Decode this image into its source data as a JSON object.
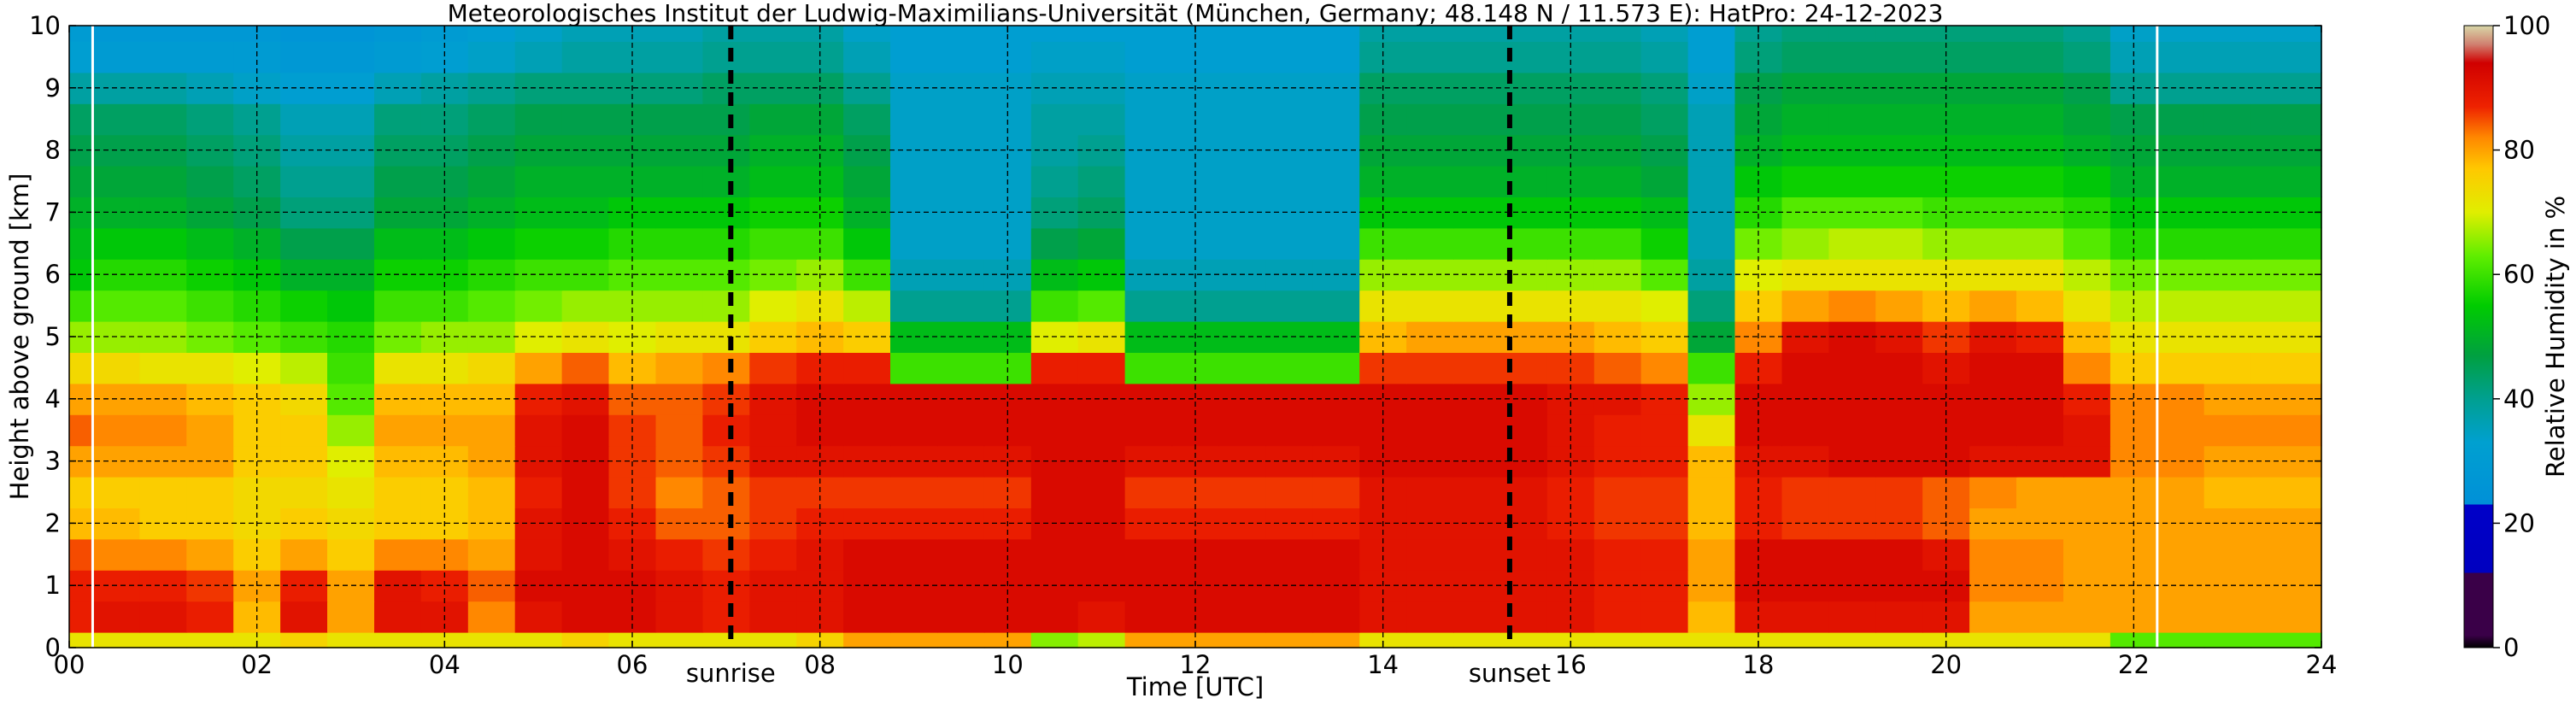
{
  "chart_data": {
    "type": "heatmap",
    "title": "Meteorologisches Institut der Ludwig-Maximilians-Universität (München, Germany; 48.148 N / 11.573 E):    HatPro: 24-12-2023",
    "xlabel": "Time [UTC]",
    "ylabel": "Height above ground [km]",
    "colorbar_label": "Relative Humidity in %",
    "xlim": [
      0,
      24
    ],
    "ylim": [
      0,
      10
    ],
    "zlim": [
      0,
      100
    ],
    "x_ticks": [
      {
        "value": 0,
        "label": "00"
      },
      {
        "value": 2,
        "label": "02"
      },
      {
        "value": 4,
        "label": "04"
      },
      {
        "value": 6,
        "label": "06"
      },
      {
        "value": 8,
        "label": "08"
      },
      {
        "value": 10,
        "label": "10"
      },
      {
        "value": 12,
        "label": "12"
      },
      {
        "value": 14,
        "label": "14"
      },
      {
        "value": 16,
        "label": "16"
      },
      {
        "value": 18,
        "label": "18"
      },
      {
        "value": 20,
        "label": "20"
      },
      {
        "value": 22,
        "label": "22"
      },
      {
        "value": 24,
        "label": "24"
      }
    ],
    "y_ticks": [
      0,
      1,
      2,
      3,
      4,
      5,
      6,
      7,
      8,
      9,
      10
    ],
    "colorbar_ticks": [
      0,
      20,
      40,
      60,
      80,
      100
    ],
    "grid": true,
    "markers": [
      {
        "label": "sunrise",
        "time": 7.05
      },
      {
        "label": "sunset",
        "time": 15.35
      }
    ],
    "data_gaps": [
      0.25,
      22.25
    ],
    "x": [
      0,
      0.5,
      1,
      1.5,
      2,
      2.5,
      3,
      3.5,
      4,
      4.5,
      5,
      5.5,
      6,
      6.5,
      7,
      7.5,
      8,
      8.5,
      9,
      9.5,
      10,
      10.5,
      11,
      11.5,
      12,
      12.5,
      13,
      13.5,
      14,
      14.5,
      15,
      15.5,
      16,
      16.5,
      17,
      17.5,
      18,
      18.5,
      19,
      19.5,
      20,
      20.5,
      21,
      21.5,
      22,
      22.5,
      23,
      23.5,
      24
    ],
    "y": [
      0,
      0.5,
      1,
      1.5,
      2,
      2.5,
      3,
      3.5,
      4,
      4.5,
      5,
      5.5,
      6,
      6.5,
      7,
      7.5,
      8,
      8.5,
      9,
      9.5,
      10
    ],
    "z": [
      [
        72,
        72,
        72,
        72,
        72,
        75,
        72,
        72,
        72,
        72,
        72,
        75,
        72,
        72,
        72,
        72,
        75,
        80,
        80,
        80,
        80,
        65,
        68,
        80,
        80,
        80,
        80,
        80,
        72,
        72,
        72,
        72,
        72,
        72,
        72,
        72,
        72,
        72,
        72,
        72,
        72,
        72,
        72,
        72,
        62,
        62,
        62,
        62,
        62
      ],
      [
        88,
        90,
        90,
        88,
        78,
        90,
        80,
        90,
        90,
        82,
        90,
        92,
        92,
        90,
        88,
        90,
        90,
        92,
        92,
        92,
        92,
        92,
        90,
        92,
        92,
        92,
        92,
        92,
        90,
        90,
        90,
        90,
        90,
        88,
        88,
        78,
        90,
        90,
        90,
        90,
        90,
        80,
        80,
        80,
        80,
        80,
        80,
        80,
        80
      ],
      [
        88,
        88,
        88,
        86,
        80,
        88,
        80,
        90,
        88,
        84,
        92,
        92,
        92,
        90,
        88,
        90,
        90,
        92,
        92,
        92,
        92,
        92,
        92,
        92,
        92,
        92,
        92,
        92,
        90,
        90,
        90,
        90,
        90,
        88,
        88,
        80,
        92,
        92,
        92,
        92,
        92,
        82,
        82,
        80,
        80,
        80,
        80,
        80,
        80
      ],
      [
        85,
        82,
        82,
        80,
        76,
        80,
        76,
        82,
        82,
        80,
        90,
        92,
        90,
        88,
        86,
        88,
        90,
        92,
        92,
        92,
        92,
        92,
        92,
        92,
        92,
        92,
        92,
        92,
        90,
        90,
        90,
        90,
        90,
        88,
        88,
        80,
        92,
        92,
        92,
        92,
        90,
        82,
        82,
        80,
        80,
        80,
        80,
        80,
        80
      ],
      [
        78,
        78,
        76,
        76,
        74,
        76,
        74,
        76,
        76,
        78,
        90,
        92,
        88,
        84,
        84,
        86,
        88,
        88,
        88,
        88,
        88,
        92,
        92,
        88,
        88,
        88,
        88,
        88,
        90,
        90,
        90,
        90,
        88,
        86,
        86,
        78,
        88,
        86,
        86,
        86,
        84,
        80,
        80,
        80,
        80,
        80,
        80,
        80,
        80
      ],
      [
        76,
        76,
        76,
        76,
        74,
        74,
        72,
        76,
        76,
        78,
        88,
        92,
        86,
        82,
        84,
        86,
        86,
        86,
        86,
        86,
        86,
        92,
        92,
        86,
        86,
        86,
        86,
        86,
        90,
        90,
        90,
        90,
        88,
        86,
        86,
        78,
        88,
        86,
        86,
        86,
        84,
        82,
        80,
        80,
        80,
        80,
        78,
        78,
        78
      ],
      [
        80,
        80,
        80,
        80,
        76,
        76,
        70,
        78,
        78,
        80,
        90,
        92,
        86,
        84,
        86,
        90,
        90,
        90,
        90,
        90,
        90,
        92,
        92,
        90,
        90,
        90,
        90,
        90,
        92,
        92,
        92,
        92,
        90,
        88,
        88,
        78,
        90,
        90,
        92,
        92,
        92,
        90,
        90,
        90,
        82,
        82,
        80,
        80,
        80
      ],
      [
        84,
        82,
        82,
        80,
        76,
        76,
        66,
        80,
        80,
        80,
        90,
        92,
        86,
        84,
        88,
        90,
        92,
        92,
        92,
        92,
        92,
        92,
        92,
        92,
        92,
        92,
        92,
        92,
        92,
        92,
        92,
        92,
        90,
        88,
        88,
        72,
        92,
        92,
        92,
        92,
        92,
        92,
        92,
        90,
        82,
        82,
        82,
        82,
        82
      ],
      [
        80,
        80,
        80,
        78,
        76,
        74,
        62,
        78,
        78,
        78,
        88,
        90,
        84,
        84,
        86,
        90,
        92,
        92,
        92,
        92,
        92,
        92,
        92,
        92,
        92,
        92,
        92,
        92,
        92,
        92,
        92,
        92,
        90,
        90,
        88,
        66,
        92,
        92,
        92,
        92,
        92,
        92,
        92,
        88,
        82,
        82,
        80,
        80,
        80
      ],
      [
        74,
        74,
        72,
        72,
        70,
        68,
        60,
        72,
        72,
        74,
        80,
        84,
        78,
        80,
        82,
        86,
        88,
        88,
        60,
        60,
        60,
        88,
        88,
        60,
        60,
        60,
        60,
        60,
        86,
        86,
        86,
        86,
        86,
        84,
        82,
        60,
        88,
        92,
        92,
        92,
        90,
        92,
        92,
        82,
        76,
        76,
        76,
        76,
        76
      ],
      [
        66,
        66,
        66,
        64,
        62,
        60,
        58,
        64,
        66,
        66,
        70,
        72,
        70,
        72,
        72,
        76,
        78,
        76,
        52,
        52,
        52,
        70,
        72,
        52,
        52,
        52,
        52,
        52,
        78,
        80,
        80,
        80,
        80,
        78,
        76,
        48,
        82,
        90,
        92,
        90,
        86,
        90,
        88,
        78,
        72,
        72,
        72,
        72,
        72
      ],
      [
        60,
        62,
        62,
        60,
        58,
        56,
        54,
        60,
        60,
        62,
        64,
        66,
        66,
        66,
        66,
        70,
        72,
        68,
        40,
        40,
        40,
        60,
        62,
        40,
        40,
        40,
        40,
        40,
        72,
        72,
        72,
        72,
        72,
        72,
        70,
        42,
        76,
        80,
        82,
        80,
        78,
        80,
        78,
        72,
        68,
        68,
        68,
        68,
        68
      ],
      [
        54,
        58,
        58,
        56,
        54,
        50,
        50,
        56,
        56,
        58,
        60,
        60,
        62,
        62,
        62,
        64,
        66,
        60,
        36,
        36,
        36,
        52,
        54,
        36,
        36,
        36,
        36,
        36,
        66,
        66,
        66,
        66,
        66,
        66,
        62,
        38,
        70,
        72,
        72,
        72,
        72,
        72,
        72,
        68,
        64,
        64,
        64,
        64,
        64
      ],
      [
        52,
        54,
        54,
        52,
        50,
        46,
        46,
        52,
        52,
        54,
        56,
        56,
        58,
        58,
        58,
        60,
        60,
        54,
        34,
        34,
        34,
        46,
        48,
        34,
        34,
        34,
        34,
        34,
        60,
        60,
        60,
        60,
        60,
        60,
        56,
        36,
        64,
        66,
        68,
        68,
        66,
        66,
        66,
        62,
        58,
        58,
        58,
        58,
        58
      ],
      [
        50,
        50,
        50,
        48,
        46,
        42,
        42,
        48,
        48,
        50,
        52,
        52,
        54,
        54,
        54,
        56,
        56,
        50,
        34,
        34,
        34,
        42,
        44,
        34,
        34,
        34,
        34,
        34,
        54,
        54,
        54,
        54,
        54,
        54,
        52,
        36,
        58,
        62,
        62,
        62,
        60,
        60,
        60,
        58,
        54,
        54,
        54,
        54,
        54
      ],
      [
        48,
        48,
        48,
        46,
        44,
        40,
        40,
        46,
        46,
        48,
        50,
        50,
        50,
        50,
        50,
        52,
        52,
        48,
        34,
        34,
        34,
        40,
        42,
        34,
        34,
        34,
        34,
        34,
        50,
        50,
        50,
        50,
        50,
        50,
        48,
        36,
        54,
        56,
        56,
        56,
        56,
        56,
        56,
        54,
        50,
        50,
        50,
        50,
        50
      ],
      [
        46,
        46,
        46,
        44,
        42,
        38,
        38,
        44,
        44,
        46,
        48,
        48,
        48,
        48,
        48,
        50,
        50,
        46,
        34,
        34,
        34,
        38,
        40,
        34,
        34,
        34,
        34,
        34,
        48,
        48,
        48,
        48,
        48,
        48,
        46,
        36,
        50,
        52,
        52,
        52,
        52,
        52,
        52,
        50,
        48,
        48,
        48,
        48,
        48
      ],
      [
        44,
        44,
        44,
        42,
        40,
        36,
        36,
        42,
        42,
        44,
        46,
        46,
        46,
        46,
        46,
        48,
        48,
        44,
        34,
        34,
        34,
        38,
        38,
        34,
        34,
        34,
        34,
        34,
        46,
        46,
        46,
        46,
        46,
        46,
        44,
        36,
        48,
        50,
        50,
        50,
        50,
        50,
        50,
        48,
        46,
        46,
        46,
        46,
        46
      ],
      [
        38,
        38,
        38,
        36,
        34,
        32,
        32,
        36,
        38,
        40,
        42,
        42,
        42,
        42,
        44,
        44,
        44,
        40,
        34,
        34,
        34,
        36,
        36,
        34,
        34,
        34,
        34,
        34,
        44,
        44,
        44,
        44,
        44,
        44,
        42,
        34,
        46,
        48,
        48,
        48,
        48,
        48,
        48,
        46,
        40,
        40,
        40,
        40,
        40
      ],
      [
        32,
        30,
        30,
        30,
        30,
        28,
        28,
        30,
        32,
        34,
        36,
        38,
        38,
        38,
        40,
        40,
        40,
        36,
        32,
        32,
        32,
        34,
        34,
        32,
        32,
        32,
        32,
        32,
        40,
        40,
        40,
        40,
        40,
        40,
        38,
        32,
        42,
        44,
        44,
        44,
        44,
        44,
        44,
        42,
        36,
        36,
        36,
        36,
        36
      ],
      [
        30,
        28,
        28,
        28,
        28,
        26,
        26,
        28,
        30,
        32,
        34,
        36,
        36,
        36,
        38,
        38,
        38,
        34,
        32,
        32,
        32,
        32,
        32,
        32,
        32,
        32,
        32,
        32,
        38,
        38,
        38,
        38,
        38,
        38,
        36,
        32,
        40,
        42,
        42,
        42,
        42,
        42,
        42,
        40,
        34,
        34,
        34,
        34,
        34
      ]
    ]
  }
}
